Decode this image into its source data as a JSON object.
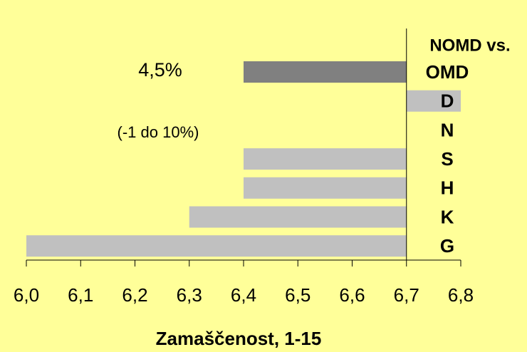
{
  "chart_data": {
    "type": "bar",
    "orientation": "horizontal",
    "header": "NOMD vs.",
    "annotations": [
      "4,5%",
      "(-1 do 10%)"
    ],
    "x_label": "Zamaščenost, 1-15",
    "categories": [
      "OMD",
      "D",
      "N",
      "S",
      "H",
      "K",
      "G"
    ],
    "values": [
      6.4,
      6.8,
      6.7,
      6.4,
      6.4,
      6.3,
      6.0
    ],
    "colors": [
      "#808080",
      "#c0c0c0",
      "#c0c0c0",
      "#c0c0c0",
      "#c0c0c0",
      "#c0c0c0",
      "#c0c0c0"
    ],
    "baseline": 6.7,
    "xlim": [
      6.0,
      6.8
    ],
    "xticks": [
      {
        "value": 6.0,
        "label": "6,0"
      },
      {
        "value": 6.1,
        "label": "6,1"
      },
      {
        "value": 6.2,
        "label": "6,2"
      },
      {
        "value": 6.3,
        "label": "6,3"
      },
      {
        "value": 6.4,
        "label": "6,4"
      },
      {
        "value": 6.5,
        "label": "6,5"
      },
      {
        "value": 6.6,
        "label": "6,6"
      },
      {
        "value": 6.7,
        "label": "6,7"
      },
      {
        "value": 6.8,
        "label": "6,8"
      }
    ],
    "background": "#ffff99"
  }
}
